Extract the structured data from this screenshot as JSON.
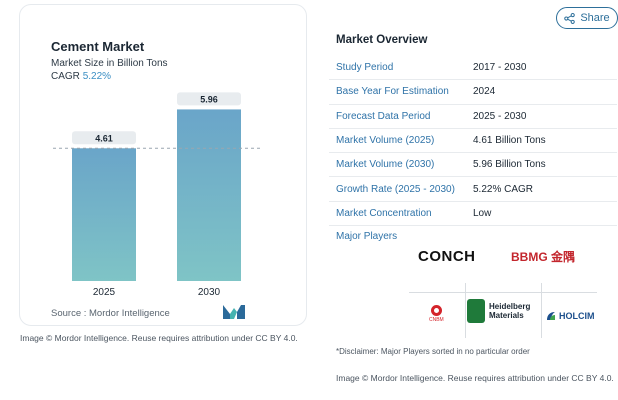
{
  "chart_card": {
    "title": "Cement Market",
    "subtitle": "Market Size in Billion Tons",
    "cagr_label": "CAGR",
    "cagr_value": "5.22%",
    "source": "Source :  Mordor Intelligence",
    "credit": "Image © Mordor Intelligence. Reuse requires attribution under CC BY 4.0."
  },
  "chart_data": {
    "type": "bar",
    "categories": [
      "2025",
      "2030"
    ],
    "values": [
      4.61,
      5.96
    ],
    "value_labels": [
      "4.61",
      "5.96"
    ],
    "ylim": [
      0,
      6.6
    ],
    "reference_line": 4.61,
    "bar_color_top": "#6aa5c9",
    "bar_color_bottom": "#7fc4c6"
  },
  "share": {
    "label": "Share"
  },
  "overview": {
    "title": "Market Overview",
    "rows": [
      {
        "key": "Study Period",
        "value": "2017 - 2030"
      },
      {
        "key": "Base Year For Estimation",
        "value": "2024"
      },
      {
        "key": "Forecast Data Period",
        "value": "2025 - 2030"
      },
      {
        "key": "Market Volume (2025)",
        "value": "4.61 Billion Tons"
      },
      {
        "key": "Market Volume (2030)",
        "value": "5.96 Billion Tons"
      },
      {
        "key": "Growth Rate (2025 - 2030)",
        "value": "5.22% CAGR"
      },
      {
        "key": "Market Concentration",
        "value": "Low"
      }
    ],
    "players_label": "Major Players",
    "players": {
      "conch": "CONCH",
      "bbmg": "BBMG 金隅",
      "cnbm": "CNBM",
      "heidelberg": [
        "Heidelberg",
        "Materials"
      ],
      "holcim": "HOLCIM"
    },
    "disclaimer": "*Disclaimer: Major Players sorted in no particular order",
    "credit": "Image © Mordor Intelligence. Reuse requires attribution under CC BY 4.0."
  }
}
